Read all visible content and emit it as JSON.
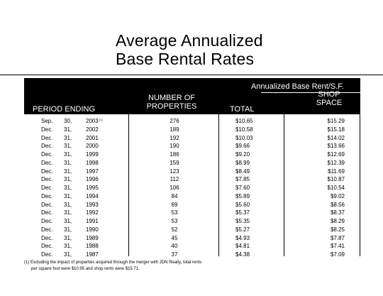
{
  "title": {
    "line1": "Average Annualized",
    "line2": "Base Rental Rates"
  },
  "header": {
    "group_label": "Annualized Base Rent/S.F.",
    "period_label": "PERIOD ENDING",
    "num_label_1": "NUMBER OF",
    "num_label_2": "PROPERTIES",
    "total_label": "TOTAL",
    "shop_label_1": "SHOP",
    "shop_label_2": "SPACE"
  },
  "rows": [
    {
      "month": "Sep.",
      "day": "30,",
      "year": "2003",
      "note": "(1)",
      "properties": "276",
      "total": "$10.65",
      "shop": "$15.29"
    },
    {
      "month": "Dec.",
      "day": "31,",
      "year": "2002",
      "note": "",
      "properties": "189",
      "total": "$10.58",
      "shop": "$15.18"
    },
    {
      "month": "Dec.",
      "day": "31,",
      "year": "2001",
      "note": "",
      "properties": "192",
      "total": "$10.03",
      "shop": "$14.02"
    },
    {
      "month": "Dec.",
      "day": "31,",
      "year": "2000",
      "note": "",
      "properties": "190",
      "total": "$9.66",
      "shop": "$13.66"
    },
    {
      "month": "Dec.",
      "day": "31,",
      "year": "1999",
      "note": "",
      "properties": "186",
      "total": "$9.20",
      "shop": "$12.69"
    },
    {
      "month": "Dec.",
      "day": "31,",
      "year": "1998",
      "note": "",
      "properties": "159",
      "total": "$8.99",
      "shop": "$12.39"
    },
    {
      "month": "Dec.",
      "day": "31,",
      "year": "1997",
      "note": "",
      "properties": "123",
      "total": "$8.49",
      "shop": "$11.69"
    },
    {
      "month": "Dec.",
      "day": "31,",
      "year": "1996",
      "note": "",
      "properties": "112",
      "total": "$7.85",
      "shop": "$10.87"
    },
    {
      "month": "Dec.",
      "day": "31,",
      "year": "1995",
      "note": "",
      "properties": "106",
      "total": "$7.60",
      "shop": "$10.54"
    },
    {
      "month": "Dec.",
      "day": "31,",
      "year": "1994",
      "note": "",
      "properties": "84",
      "total": "$5.89",
      "shop": "$9.02"
    },
    {
      "month": "Dec.",
      "day": "31,",
      "year": "1993",
      "note": "",
      "properties": "69",
      "total": "$5.60",
      "shop": "$8.56"
    },
    {
      "month": "Dec.",
      "day": "31,",
      "year": "1992",
      "note": "",
      "properties": "53",
      "total": "$5.37",
      "shop": "$8.37"
    },
    {
      "month": "Dec.",
      "day": "31,",
      "year": "1991",
      "note": "",
      "properties": "53",
      "total": "$5.35",
      "shop": "$8.29"
    },
    {
      "month": "Dec.",
      "day": "31,",
      "year": "1990",
      "note": "",
      "properties": "52",
      "total": "$5.27",
      "shop": "$8.25"
    },
    {
      "month": "Dec.",
      "day": "31,",
      "year": "1989",
      "note": "",
      "properties": "45",
      "total": "$4.93",
      "shop": "$7.87"
    },
    {
      "month": "Dec.",
      "day": "31,",
      "year": "1988",
      "note": "",
      "properties": "40",
      "total": "$4.81",
      "shop": "$7.41"
    },
    {
      "month": "Dec.",
      "day": "31,",
      "year": "1987",
      "note": "",
      "properties": "37",
      "total": "$4.38",
      "shop": "$7.09"
    }
  ],
  "footnote": {
    "line1": "(1) Excluding the impact of properties acquired through the merger with JDN Realty, total rents",
    "line2": "per square foot were $10.95 and shop rents were $15.71."
  }
}
